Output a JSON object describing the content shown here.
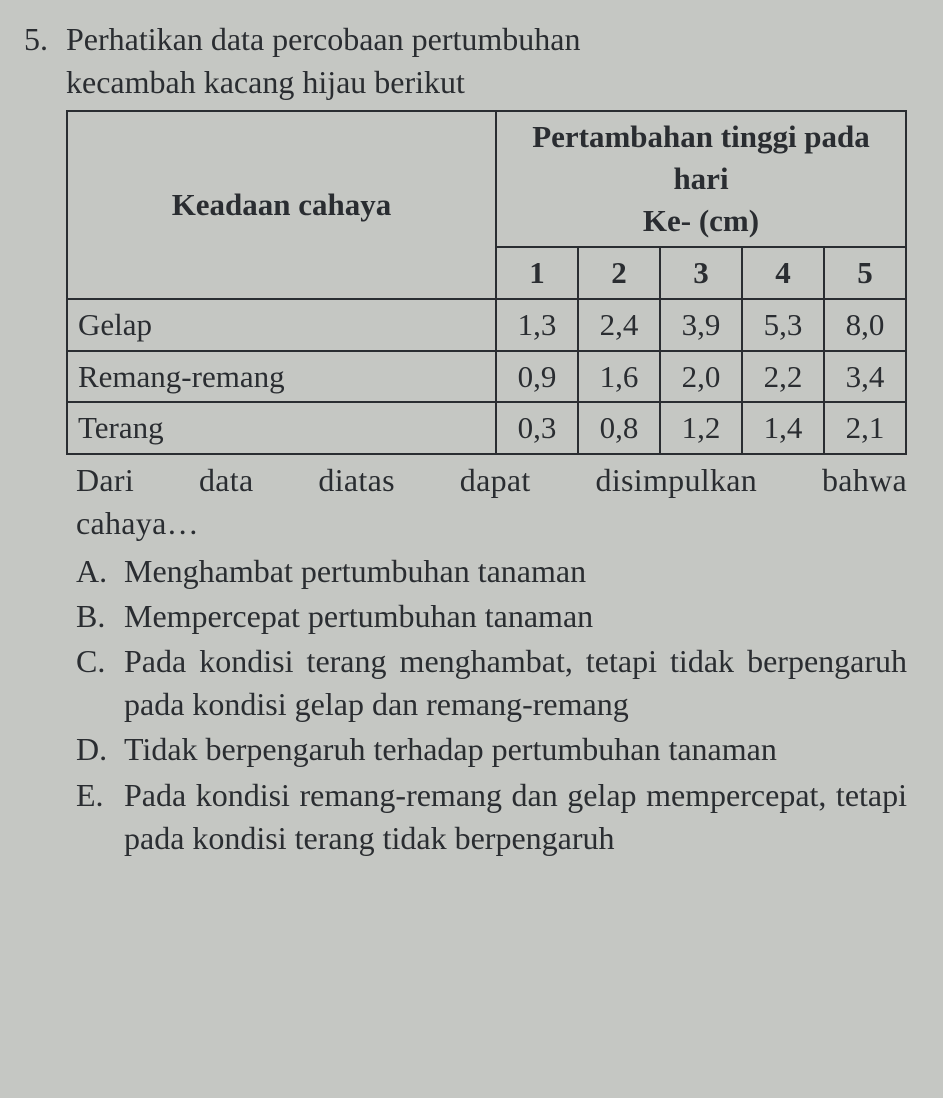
{
  "question": {
    "number": "5.",
    "text_line1": "Perhatikan data percobaan pertumbuhan",
    "text_line2": "kecambah kacang hijau berikut"
  },
  "table": {
    "row_header": "Keadaan cahaya",
    "group_header_line1": "Pertambahan tinggi pada hari",
    "group_header_line2": "Ke- (cm)",
    "day_labels": [
      "1",
      "2",
      "3",
      "4",
      "5"
    ],
    "rows": [
      {
        "label": "Gelap",
        "values": [
          "1,3",
          "2,4",
          "3,9",
          "5,3",
          "8,0"
        ]
      },
      {
        "label": "Remang-remang",
        "values": [
          "0,9",
          "1,6",
          "2,0",
          "2,2",
          "3,4"
        ]
      },
      {
        "label": "Terang",
        "values": [
          "0,3",
          "0,8",
          "1,2",
          "1,4",
          "2,1"
        ]
      }
    ]
  },
  "conclusion_line1": "Dari data diatas dapat disimpulkan bahwa",
  "conclusion_line2": "cahaya…",
  "options": {
    "A": "Menghambat pertumbuhan tanaman",
    "B": "Mempercepat pertumbuhan tanaman",
    "C": "Pada kondisi terang menghambat, tetapi tidak berpengaruh pada kondisi gelap dan remang-remang",
    "D": "Tidak berpengaruh terhadap pertumbuhan tanaman",
    "E": "Pada kondisi remang-remang dan gelap mempercepat, tetapi pada kondisi terang tidak berpengaruh"
  },
  "colors": {
    "background": "#c5c7c3",
    "text": "#2a2d31",
    "border": "#2a2d31"
  },
  "typography": {
    "font_family": "Times New Roman",
    "base_fontsize_pt": 24,
    "table_fontsize_pt": 23
  }
}
